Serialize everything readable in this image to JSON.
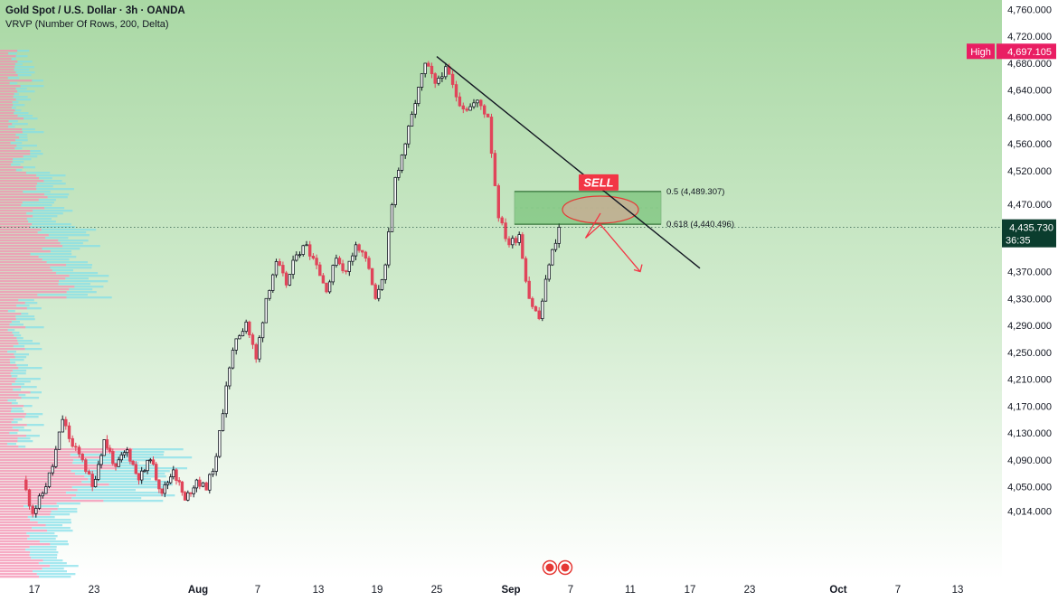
{
  "header": {
    "symbol_line": "Gold Spot / U.S. Dollar · 3h · OANDA",
    "indicator_line": "VRVP (Number Of Rows, 200, Delta)"
  },
  "colors": {
    "bull": "#26a69a",
    "bear": "#ef5350",
    "candle": "#131722",
    "bear_wick": "#e0455a",
    "zone_fill": "#4caf50",
    "price_label_bg": "#0b3d2e",
    "high_label_bg": "#e91e63",
    "sell_bg": "#f23645"
  },
  "chart_data": {
    "type": "candlestick",
    "y_axis": {
      "ticks": [
        "4,760.000",
        "4,720.000",
        "4,680.000",
        "4,640.000",
        "4,600.000",
        "4,560.000",
        "4,520.000",
        "4,470.000",
        "4,370.000",
        "4,330.000",
        "4,290.000",
        "4,250.000",
        "4,210.000",
        "4,170.000",
        "4,130.000",
        "4,090.000",
        "4,050.000",
        "4,014.000"
      ],
      "tick_values": [
        4760,
        4720,
        4680,
        4640,
        4600,
        4560,
        4520,
        4470,
        4370,
        4330,
        4290,
        4250,
        4210,
        4170,
        4130,
        4090,
        4050,
        4014
      ],
      "range": [
        3990,
        4775
      ]
    },
    "x_axis": {
      "labels": [
        "17",
        "23",
        "Aug",
        "7",
        "13",
        "19",
        "25",
        "Sep",
        "7",
        "11",
        "17",
        "23",
        "Oct",
        "7",
        "13"
      ],
      "label_values": [
        "Jul 17",
        "Jul 23",
        "Aug 1",
        "Aug 7",
        "Aug 13",
        "Aug 19",
        "Aug 25",
        "Sep 1",
        "Sep 7",
        "Sep 11",
        "Sep 17",
        "Sep 23",
        "Oct 1",
        "Oct 7",
        "Oct 13"
      ],
      "bold_labels": [
        "Aug",
        "Sep",
        "Oct"
      ]
    },
    "price_path": [
      {
        "date": "Jul 16",
        "price": 4060
      },
      {
        "date": "Jul 17",
        "price": 4010
      },
      {
        "date": "Jul 18",
        "price": 4040
      },
      {
        "date": "Jul 19",
        "price": 4080
      },
      {
        "date": "Jul 20",
        "price": 4150
      },
      {
        "date": "Jul 21",
        "price": 4110
      },
      {
        "date": "Jul 22",
        "price": 4090
      },
      {
        "date": "Jul 23",
        "price": 4050
      },
      {
        "date": "Jul 24",
        "price": 4120
      },
      {
        "date": "Jul 25",
        "price": 4080
      },
      {
        "date": "Jul 26",
        "price": 4105
      },
      {
        "date": "Jul 27",
        "price": 4060
      },
      {
        "date": "Jul 28",
        "price": 4090
      },
      {
        "date": "Jul 29",
        "price": 4040
      },
      {
        "date": "Jul 30",
        "price": 4075
      },
      {
        "date": "Jul 31",
        "price": 4030
      },
      {
        "date": "Aug 1",
        "price": 4060
      },
      {
        "date": "Aug 2",
        "price": 4045
      },
      {
        "date": "Aug 3",
        "price": 4095
      },
      {
        "date": "Aug 4",
        "price": 4200
      },
      {
        "date": "Aug 5",
        "price": 4270
      },
      {
        "date": "Aug 6",
        "price": 4295
      },
      {
        "date": "Aug 7",
        "price": 4240
      },
      {
        "date": "Aug 8",
        "price": 4330
      },
      {
        "date": "Aug 9",
        "price": 4385
      },
      {
        "date": "Aug 10",
        "price": 4350
      },
      {
        "date": "Aug 11",
        "price": 4395
      },
      {
        "date": "Aug 12",
        "price": 4410
      },
      {
        "date": "Aug 13",
        "price": 4380
      },
      {
        "date": "Aug 14",
        "price": 4340
      },
      {
        "date": "Aug 15",
        "price": 4390
      },
      {
        "date": "Aug 16",
        "price": 4370
      },
      {
        "date": "Aug 17",
        "price": 4410
      },
      {
        "date": "Aug 18",
        "price": 4390
      },
      {
        "date": "Aug 19",
        "price": 4330
      },
      {
        "date": "Aug 20",
        "price": 4380
      },
      {
        "date": "Aug 21",
        "price": 4510
      },
      {
        "date": "Aug 22",
        "price": 4560
      },
      {
        "date": "Aug 23",
        "price": 4620
      },
      {
        "date": "Aug 24",
        "price": 4680
      },
      {
        "date": "Aug 25",
        "price": 4650
      },
      {
        "date": "Aug 26",
        "price": 4675
      },
      {
        "date": "Aug 27",
        "price": 4630
      },
      {
        "date": "Aug 28",
        "price": 4610
      },
      {
        "date": "Aug 29",
        "price": 4625
      },
      {
        "date": "Aug 30",
        "price": 4600
      },
      {
        "date": "Aug 31",
        "price": 4450
      },
      {
        "date": "Sep 1",
        "price": 4410
      },
      {
        "date": "Sep 2",
        "price": 4425
      },
      {
        "date": "Sep 3",
        "price": 4330
      },
      {
        "date": "Sep 4",
        "price": 4300
      },
      {
        "date": "Sep 5",
        "price": 4380
      },
      {
        "date": "Sep 6",
        "price": 4436
      }
    ],
    "trend_line": {
      "start": {
        "date": "Aug 25",
        "price": 4690
      },
      "end": {
        "date": "Sep 18",
        "price": 4375
      }
    },
    "fib_zone": {
      "upper": {
        "label": "0.5 (4,489.307)",
        "value": 4489.307
      },
      "lower": {
        "label": "0.618 (4,440.496)",
        "value": 4440.496
      },
      "start_date": "Sep 1",
      "end_date": "Sep 15"
    },
    "sell_label": "SELL",
    "projection": [
      {
        "date": "Sep 7",
        "price": 4455
      },
      {
        "date": "Sep 8",
        "price": 4420
      },
      {
        "date": "Sep 9",
        "price": 4440
      },
      {
        "date": "Sep 12",
        "price": 4370
      }
    ],
    "current_price": {
      "label": "4,435.730",
      "countdown": "36:35",
      "value": 4435.73
    },
    "high": {
      "label": "High",
      "value_label": "4,697.105",
      "value": 4697.105
    },
    "volume_profile_note": "VRVP"
  }
}
